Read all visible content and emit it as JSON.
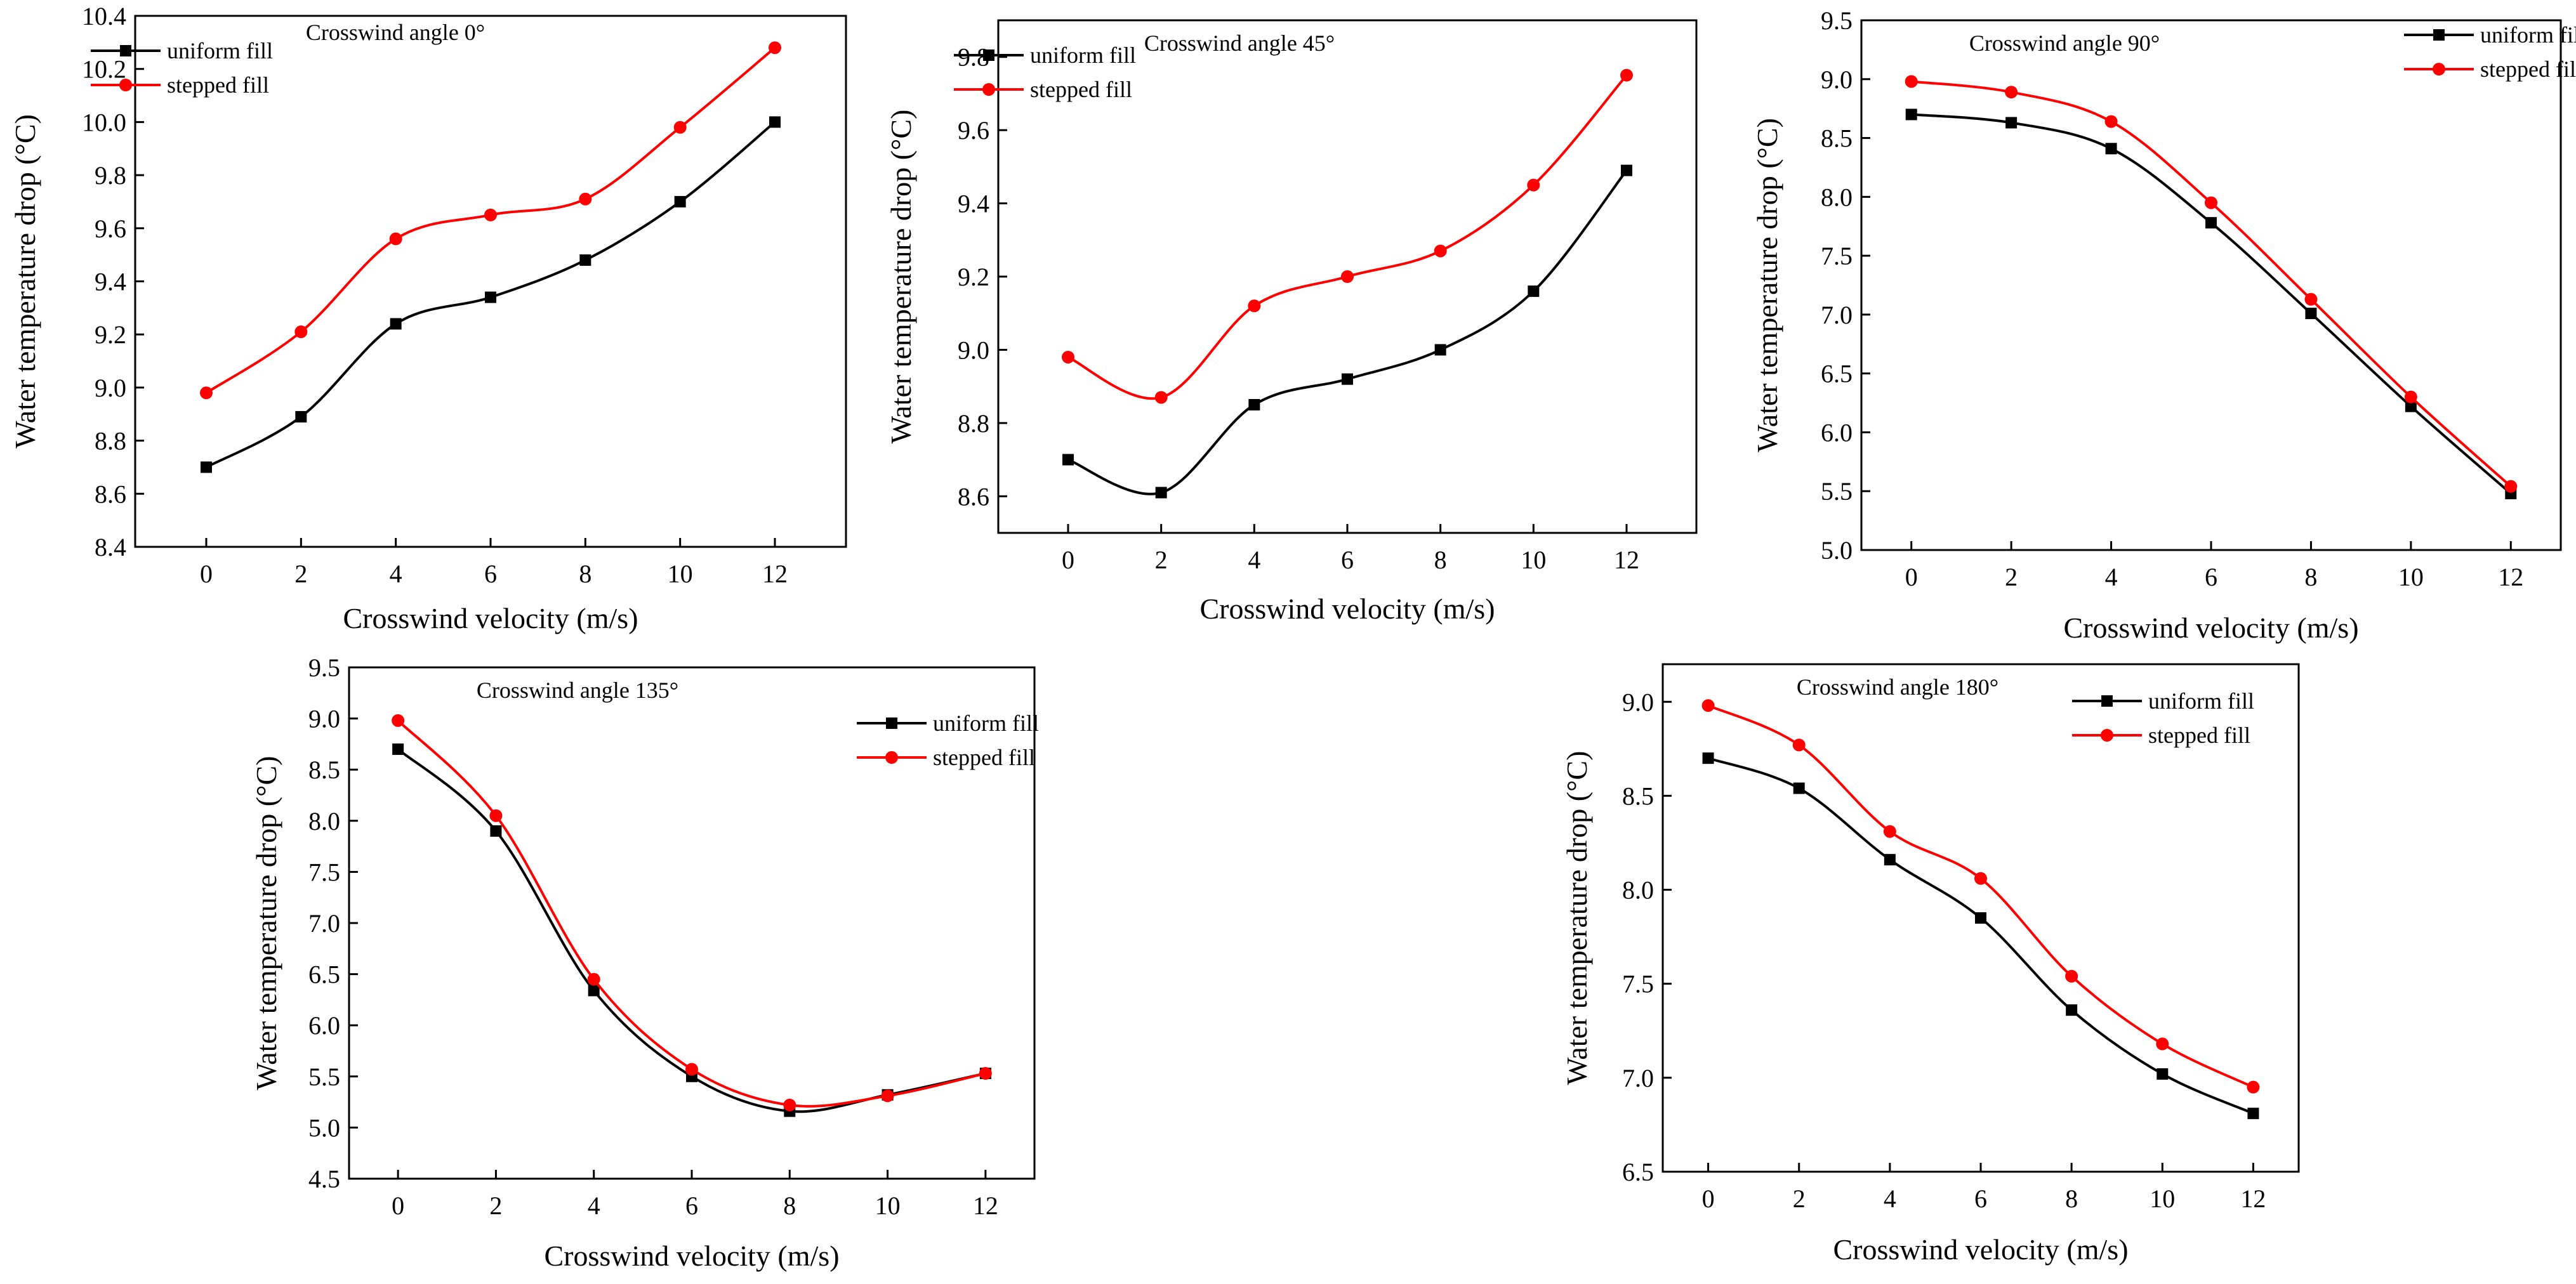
{
  "chart_data": [
    {
      "type": "line",
      "title": "Crosswind angle  0°",
      "xlabel": "Crosswind velocity (m/s)",
      "ylabel": "Water temperature drop (°C)",
      "x": [
        0,
        2,
        4,
        6,
        8,
        10,
        12
      ],
      "xticks": [
        "0",
        "2",
        "4",
        "6",
        "8",
        "10",
        "12"
      ],
      "xlim": [
        -1.5,
        13.5
      ],
      "ylim": [
        8.4,
        10.4
      ],
      "yticks": [
        "8.4",
        "8.6",
        "8.8",
        "9.0",
        "9.2",
        "9.4",
        "9.6",
        "9.8",
        "10.0",
        "10.2",
        "10.4"
      ],
      "legend_position": "top-left",
      "series": [
        {
          "name": "uniform fill",
          "color": "#000000",
          "marker": "square",
          "values": [
            8.7,
            8.89,
            9.24,
            9.34,
            9.48,
            9.7,
            10.0
          ]
        },
        {
          "name": "stepped fill",
          "color": "#ff0000",
          "marker": "circle",
          "values": [
            8.98,
            9.21,
            9.56,
            9.65,
            9.71,
            9.98,
            10.28
          ]
        }
      ]
    },
    {
      "type": "line",
      "title": "Crosswind angle  45°",
      "xlabel": "Crosswind velocity (m/s)",
      "ylabel": "Water temperature drop (°C)",
      "x": [
        0,
        2,
        4,
        6,
        8,
        10,
        12
      ],
      "xticks": [
        "0",
        "2",
        "4",
        "6",
        "8",
        "10",
        "12"
      ],
      "xlim": [
        -1.5,
        13.5
      ],
      "ylim": [
        8.5,
        9.9
      ],
      "yticks": [
        "8.6",
        "8.8",
        "9.0",
        "9.2",
        "9.4",
        "9.6",
        "9.8"
      ],
      "legend_position": "top-left",
      "series": [
        {
          "name": "uniform fill",
          "color": "#000000",
          "marker": "square",
          "values": [
            8.7,
            8.61,
            8.85,
            8.92,
            9.0,
            9.16,
            9.49
          ]
        },
        {
          "name": "stepped fill",
          "color": "#ff0000",
          "marker": "circle",
          "values": [
            8.98,
            8.87,
            9.12,
            9.2,
            9.27,
            9.45,
            9.75
          ]
        }
      ]
    },
    {
      "type": "line",
      "title": "Crosswind angle  90°",
      "xlabel": "Crosswind velocity (m/s)",
      "ylabel": "Water temperature drop (°C)",
      "x": [
        0,
        2,
        4,
        6,
        8,
        10,
        12
      ],
      "xticks": [
        "0",
        "2",
        "4",
        "6",
        "8",
        "10",
        "12"
      ],
      "xlim": [
        -1.0,
        13.0
      ],
      "ylim": [
        5.0,
        9.5
      ],
      "yticks": [
        "5.0",
        "5.5",
        "6.0",
        "6.5",
        "7.0",
        "7.5",
        "8.0",
        "8.5",
        "9.0",
        "9.5"
      ],
      "legend_position": "top-right",
      "series": [
        {
          "name": "uniform fill",
          "color": "#000000",
          "marker": "square",
          "values": [
            8.7,
            8.63,
            8.41,
            7.78,
            7.01,
            6.22,
            5.48
          ]
        },
        {
          "name": "stepped fill",
          "color": "#ff0000",
          "marker": "circle",
          "values": [
            8.98,
            8.89,
            8.64,
            7.95,
            7.13,
            6.3,
            5.54
          ]
        }
      ]
    },
    {
      "type": "line",
      "title": "Crosswind angle  135°",
      "xlabel": "Crosswind velocity (m/s)",
      "ylabel": "Water temperature drop (°C)",
      "x": [
        0,
        2,
        4,
        6,
        8,
        10,
        12
      ],
      "xticks": [
        "0",
        "2",
        "4",
        "6",
        "8",
        "10",
        "12"
      ],
      "xlim": [
        -1.0,
        13.0
      ],
      "ylim": [
        4.5,
        9.5
      ],
      "yticks": [
        "4.5",
        "5.0",
        "5.5",
        "6.0",
        "6.5",
        "7.0",
        "7.5",
        "8.0",
        "8.5",
        "9.0",
        "9.5"
      ],
      "legend_position": "top-right",
      "series": [
        {
          "name": "uniform fill",
          "color": "#000000",
          "marker": "square",
          "values": [
            8.7,
            7.9,
            6.34,
            5.5,
            5.16,
            5.32,
            5.53
          ]
        },
        {
          "name": "stepped fill",
          "color": "#ff0000",
          "marker": "circle",
          "values": [
            8.98,
            8.05,
            6.45,
            5.57,
            5.22,
            5.31,
            5.53
          ]
        }
      ]
    },
    {
      "type": "line",
      "title": "Crosswind angle  180°",
      "xlabel": "Crosswind velocity (m/s)",
      "ylabel": "Water temperature drop (°C)",
      "x": [
        0,
        2,
        4,
        6,
        8,
        10,
        12
      ],
      "xticks": [
        "0",
        "2",
        "4",
        "6",
        "8",
        "10",
        "12"
      ],
      "xlim": [
        -1.0,
        13.0
      ],
      "ylim": [
        6.5,
        9.2
      ],
      "yticks": [
        "6.5",
        "7.0",
        "7.5",
        "8.0",
        "8.5",
        "9.0"
      ],
      "legend_position": "top-right",
      "series": [
        {
          "name": "uniform fill",
          "color": "#000000",
          "marker": "square",
          "values": [
            8.7,
            8.54,
            8.16,
            7.85,
            7.36,
            7.02,
            6.81
          ]
        },
        {
          "name": "stepped fill",
          "color": "#ff0000",
          "marker": "circle",
          "values": [
            8.98,
            8.77,
            8.31,
            8.06,
            7.54,
            7.18,
            6.95
          ]
        }
      ]
    }
  ]
}
